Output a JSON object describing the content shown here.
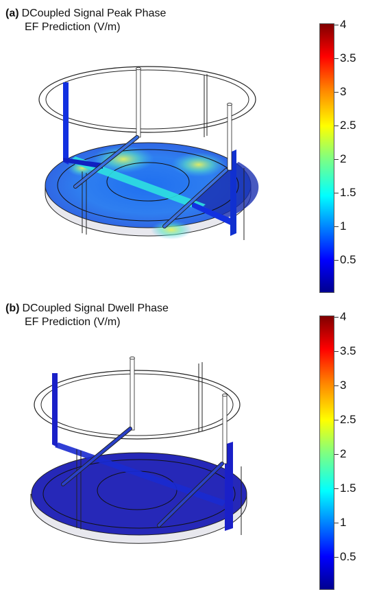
{
  "panels": [
    {
      "tag": "(a)",
      "title_line1": "DCoupled Signal Peak Phase",
      "title_line2": "EF Prediction (V/m)",
      "colorbar_ticks": [
        "4",
        "3.5",
        "3",
        "2.5",
        "2",
        "1.5",
        "1",
        "0.5"
      ]
    },
    {
      "tag": "(b)",
      "title_line1": "DCoupled Signal Dwell Phase",
      "title_line2": "EF Prediction (V/m)",
      "colorbar_ticks": [
        "4",
        "3.5",
        "3",
        "2.5",
        "2",
        "1.5",
        "1",
        "0.5"
      ]
    }
  ],
  "colorbar": {
    "colormap": "jet",
    "colors": [
      "#00008f",
      "#0000ff",
      "#0080ff",
      "#00ffff",
      "#80ff80",
      "#ffff00",
      "#ff8000",
      "#ff0000",
      "#800000"
    ]
  }
}
